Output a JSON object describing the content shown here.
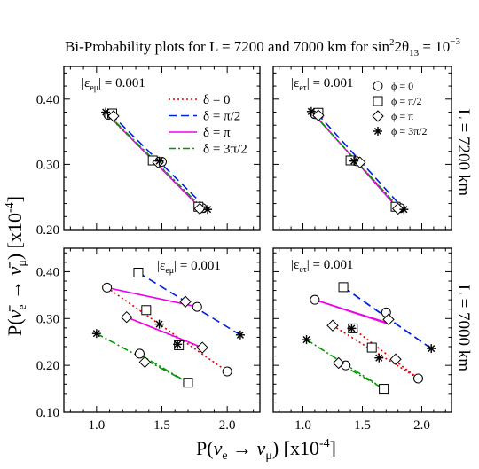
{
  "figure": {
    "title": "Bi-Probability plots for L  = 7200 and 7000 km for sin²2θ₁₃ = 10⁻³",
    "xlabel": "P(ν_e → ν_μ) [x10⁻⁴]",
    "ylabel": "P(ν̄_e → ν̄_μ) [x10⁻⁴]",
    "row_labels": [
      "L = 7200 km",
      "L = 7000 km"
    ],
    "colors": {
      "delta_0": "#e00000",
      "delta_pi2": "#0022dd",
      "delta_pi": "#ee00ee",
      "delta_3pi2": "#009900"
    }
  },
  "chart_data": [
    {
      "type": "line",
      "panel": "top-left",
      "annotation": "|ε_eμ| = 0.001",
      "xlim": [
        0.75,
        2.25
      ],
      "ylim": [
        0.2,
        0.45
      ],
      "xticks": [],
      "yticks": [
        "0.20",
        "0.30",
        "0.40"
      ],
      "legend": {
        "position": "top-right",
        "entries": [
          {
            "label": "δ = 0",
            "style": "dotted",
            "color": "#e00000"
          },
          {
            "label": "δ = π/2",
            "style": "dashed",
            "color": "#0022dd"
          },
          {
            "label": "δ = π",
            "style": "solid",
            "color": "#ee00ee"
          },
          {
            "label": "δ = 3π/2",
            "style": "dashdot",
            "color": "#009900"
          }
        ]
      },
      "series": [
        {
          "name": "δ = 0",
          "style": "dotted",
          "color": "#e00000",
          "x": [
            1.08,
            1.81
          ],
          "y": [
            0.376,
            0.233
          ]
        },
        {
          "name": "δ = π/2",
          "style": "dashed",
          "color": "#0022dd",
          "x": [
            1.11,
            1.83
          ],
          "y": [
            0.377,
            0.235
          ]
        },
        {
          "name": "δ = π",
          "style": "solid",
          "color": "#ee00ee",
          "x": [
            1.09,
            1.8
          ],
          "y": [
            0.375,
            0.232
          ]
        },
        {
          "name": "δ = 3π/2",
          "style": "dashdot",
          "color": "#009900",
          "x": [
            1.07,
            1.82
          ],
          "y": [
            0.38,
            0.231
          ]
        }
      ],
      "markers": [
        {
          "symbol": "circle",
          "x": 1.09,
          "y": 0.376
        },
        {
          "symbol": "circle",
          "x": 1.5,
          "y": 0.304
        },
        {
          "symbol": "circle",
          "x": 1.81,
          "y": 0.233
        },
        {
          "symbol": "square",
          "x": 1.12,
          "y": 0.378
        },
        {
          "symbol": "square",
          "x": 1.43,
          "y": 0.306
        },
        {
          "symbol": "square",
          "x": 1.78,
          "y": 0.235
        },
        {
          "symbol": "diamond",
          "x": 1.13,
          "y": 0.374
        },
        {
          "symbol": "diamond",
          "x": 1.47,
          "y": 0.303
        },
        {
          "symbol": "diamond",
          "x": 1.79,
          "y": 0.232
        },
        {
          "symbol": "star",
          "x": 1.07,
          "y": 0.38
        },
        {
          "symbol": "star",
          "x": 1.48,
          "y": 0.305
        },
        {
          "symbol": "star",
          "x": 1.85,
          "y": 0.231
        }
      ]
    },
    {
      "type": "line",
      "panel": "top-right",
      "annotation": "|ε_eτ| = 0.001",
      "xlim": [
        0.75,
        2.25
      ],
      "ylim": [
        0.2,
        0.45
      ],
      "xticks": [],
      "yticks": [],
      "legend": {
        "position": "top-right",
        "entries": [
          {
            "label": "ϕ = 0",
            "symbol": "circle"
          },
          {
            "label": "ϕ = π/2",
            "symbol": "square"
          },
          {
            "label": "ϕ = π",
            "symbol": "diamond"
          },
          {
            "label": "ϕ = 3π/2",
            "symbol": "star"
          }
        ]
      },
      "series": [
        {
          "name": "δ = 0",
          "style": "dotted",
          "color": "#e00000",
          "x": [
            1.09,
            1.81
          ],
          "y": [
            0.377,
            0.233
          ]
        },
        {
          "name": "δ = π/2",
          "style": "dashed",
          "color": "#0022dd",
          "x": [
            1.12,
            1.83
          ],
          "y": [
            0.378,
            0.235
          ]
        },
        {
          "name": "δ = π",
          "style": "solid",
          "color": "#ee00ee",
          "x": [
            1.1,
            1.8
          ],
          "y": [
            0.376,
            0.232
          ]
        },
        {
          "name": "δ = 3π/2",
          "style": "dashdot",
          "color": "#009900",
          "x": [
            1.07,
            1.82
          ],
          "y": [
            0.381,
            0.231
          ]
        }
      ],
      "markers": [
        {
          "symbol": "circle",
          "x": 1.1,
          "y": 0.377
        },
        {
          "symbol": "circle",
          "x": 1.45,
          "y": 0.305
        },
        {
          "symbol": "circle",
          "x": 1.82,
          "y": 0.233
        },
        {
          "symbol": "square",
          "x": 1.13,
          "y": 0.379
        },
        {
          "symbol": "square",
          "x": 1.4,
          "y": 0.306
        },
        {
          "symbol": "square",
          "x": 1.78,
          "y": 0.235
        },
        {
          "symbol": "diamond",
          "x": 1.13,
          "y": 0.375
        },
        {
          "symbol": "diamond",
          "x": 1.48,
          "y": 0.303
        },
        {
          "symbol": "diamond",
          "x": 1.8,
          "y": 0.232
        },
        {
          "symbol": "star",
          "x": 1.07,
          "y": 0.381
        },
        {
          "symbol": "star",
          "x": 1.43,
          "y": 0.305
        },
        {
          "symbol": "star",
          "x": 1.85,
          "y": 0.231
        }
      ]
    },
    {
      "type": "line",
      "panel": "bottom-left",
      "annotation": "|ε_eμ| = 0.001",
      "xlim": [
        0.75,
        2.25
      ],
      "ylim": [
        0.1,
        0.45
      ],
      "xticks": [
        "1.0",
        "1.5",
        "2.0"
      ],
      "yticks": [
        "0.10",
        "0.20",
        "0.30",
        "0.40"
      ],
      "series": [
        {
          "name": "δ = 0",
          "style": "dotted",
          "color": "#e00000",
          "x": [
            1.08,
            2.0
          ],
          "y": [
            0.366,
            0.187
          ]
        },
        {
          "name": "δ = π/2",
          "style": "dashed",
          "color": "#0022dd",
          "x": [
            1.32,
            2.1
          ],
          "y": [
            0.398,
            0.265
          ]
        },
        {
          "name": "δ = π",
          "style": "solid",
          "color": "#ee00ee",
          "x": [
            1.08,
            1.77
          ],
          "y": [
            0.366,
            0.325
          ]
        },
        {
          "name": "δ = 3π/2",
          "style": "dashdot",
          "color": "#009900",
          "x": [
            1.0,
            1.7
          ],
          "y": [
            0.268,
            0.163
          ]
        }
      ],
      "extra_segments": [
        {
          "color": "#e00000",
          "style": "dotted",
          "x": [
            1.23,
            1.8
          ],
          "y": [
            0.303,
            0.238
          ]
        },
        {
          "color": "#ee00ee",
          "style": "solid",
          "x": [
            1.23,
            1.81
          ],
          "y": [
            0.303,
            0.238
          ]
        },
        {
          "color": "#009900",
          "style": "dashdot",
          "x": [
            1.32,
            1.7
          ],
          "y": [
            0.225,
            0.163
          ]
        }
      ],
      "markers": [
        {
          "symbol": "circle",
          "x": 1.08,
          "y": 0.366
        },
        {
          "symbol": "circle",
          "x": 1.77,
          "y": 0.325
        },
        {
          "symbol": "circle",
          "x": 2.0,
          "y": 0.187
        },
        {
          "symbol": "circle",
          "x": 1.33,
          "y": 0.225
        },
        {
          "symbol": "square",
          "x": 1.32,
          "y": 0.398
        },
        {
          "symbol": "square",
          "x": 1.38,
          "y": 0.318
        },
        {
          "symbol": "square",
          "x": 1.63,
          "y": 0.243
        },
        {
          "symbol": "square",
          "x": 1.7,
          "y": 0.163
        },
        {
          "symbol": "diamond",
          "x": 1.23,
          "y": 0.303
        },
        {
          "symbol": "diamond",
          "x": 1.68,
          "y": 0.336
        },
        {
          "symbol": "diamond",
          "x": 1.81,
          "y": 0.238
        },
        {
          "symbol": "diamond",
          "x": 1.37,
          "y": 0.207
        },
        {
          "symbol": "star",
          "x": 1.0,
          "y": 0.268
        },
        {
          "symbol": "star",
          "x": 1.48,
          "y": 0.288
        },
        {
          "symbol": "star",
          "x": 1.62,
          "y": 0.245
        },
        {
          "symbol": "star",
          "x": 2.1,
          "y": 0.265
        }
      ]
    },
    {
      "type": "line",
      "panel": "bottom-right",
      "annotation": "|ε_eτ| = 0.001",
      "xlim": [
        0.75,
        2.25
      ],
      "ylim": [
        0.1,
        0.45
      ],
      "xticks": [
        "1.0",
        "1.5",
        "2.0"
      ],
      "yticks": [],
      "series": [
        {
          "name": "δ = 0",
          "style": "dotted",
          "color": "#e00000",
          "x": [
            1.25,
            1.97
          ],
          "y": [
            0.285,
            0.172
          ]
        },
        {
          "name": "δ = π/2",
          "style": "dashed",
          "color": "#0022dd",
          "x": [
            1.34,
            2.08
          ],
          "y": [
            0.367,
            0.236
          ]
        },
        {
          "name": "δ = π",
          "style": "solid",
          "color": "#ee00ee",
          "x": [
            1.1,
            1.7
          ],
          "y": [
            0.34,
            0.29
          ]
        },
        {
          "name": "δ = 3π/2",
          "style": "dashdot",
          "color": "#009900",
          "x": [
            1.03,
            1.68
          ],
          "y": [
            0.255,
            0.15
          ]
        }
      ],
      "extra_segments": [
        {
          "color": "#0022dd",
          "style": "dashed",
          "x": [
            1.34,
            2.08
          ],
          "y": [
            0.367,
            0.236
          ]
        },
        {
          "color": "#e00000",
          "style": "dotted",
          "x": [
            1.42,
            1.97
          ],
          "y": [
            0.279,
            0.172
          ]
        },
        {
          "color": "#ee00ee",
          "style": "solid",
          "x": [
            1.1,
            1.72
          ],
          "y": [
            0.34,
            0.29
          ]
        },
        {
          "color": "#009900",
          "style": "dashdot",
          "x": [
            1.3,
            1.68
          ],
          "y": [
            0.205,
            0.15
          ]
        }
      ],
      "markers": [
        {
          "symbol": "circle",
          "x": 1.1,
          "y": 0.34
        },
        {
          "symbol": "circle",
          "x": 1.7,
          "y": 0.313
        },
        {
          "symbol": "circle",
          "x": 1.97,
          "y": 0.172
        },
        {
          "symbol": "circle",
          "x": 1.36,
          "y": 0.2
        },
        {
          "symbol": "square",
          "x": 1.34,
          "y": 0.367
        },
        {
          "symbol": "square",
          "x": 1.42,
          "y": 0.279
        },
        {
          "symbol": "square",
          "x": 1.58,
          "y": 0.238
        },
        {
          "symbol": "square",
          "x": 1.68,
          "y": 0.15
        },
        {
          "symbol": "diamond",
          "x": 1.25,
          "y": 0.285
        },
        {
          "symbol": "diamond",
          "x": 1.72,
          "y": 0.298
        },
        {
          "symbol": "diamond",
          "x": 1.78,
          "y": 0.213
        },
        {
          "symbol": "diamond",
          "x": 1.3,
          "y": 0.205
        },
        {
          "symbol": "star",
          "x": 1.03,
          "y": 0.255
        },
        {
          "symbol": "star",
          "x": 1.41,
          "y": 0.279
        },
        {
          "symbol": "star",
          "x": 1.64,
          "y": 0.216
        },
        {
          "symbol": "star",
          "x": 2.08,
          "y": 0.236
        }
      ]
    }
  ]
}
